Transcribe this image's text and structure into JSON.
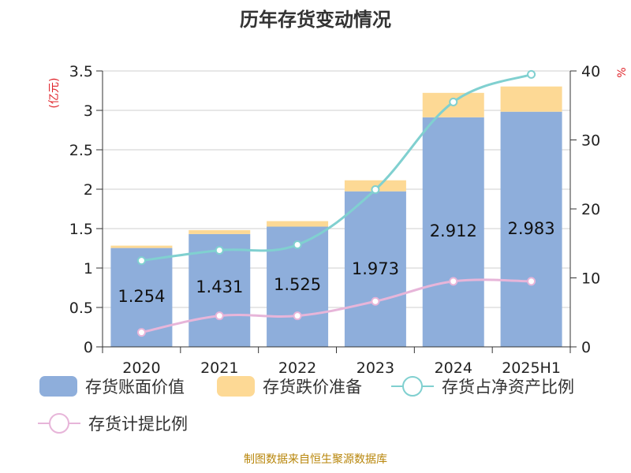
{
  "chart_data": {
    "type": "bar",
    "title": "历年存货变动情况",
    "categories": [
      "2020",
      "2021",
      "2022",
      "2023",
      "2024",
      "2025H1"
    ],
    "left_axis": {
      "unit_label": "(亿元)",
      "ylim": [
        0,
        3.5
      ],
      "ticks": [
        "0",
        "0.5",
        "1",
        "1.5",
        "2",
        "2.5",
        "3",
        "3.5"
      ]
    },
    "right_axis": {
      "unit_label": "%",
      "ylim": [
        0,
        40
      ],
      "ticks": [
        "0",
        "10",
        "20",
        "30",
        "40"
      ]
    },
    "bar_series": [
      {
        "name": "存货账面价值",
        "color": "#8eaedb",
        "values": [
          1.254,
          1.431,
          1.525,
          1.973,
          2.912,
          2.983
        ],
        "labels": [
          "1.254",
          "1.431",
          "1.525",
          "1.973",
          "2.912",
          "2.983"
        ]
      },
      {
        "name": "存货跌价准备",
        "color": "#fdd995",
        "values": [
          0.03,
          0.05,
          0.07,
          0.14,
          0.31,
          0.32
        ]
      }
    ],
    "line_series": [
      {
        "name": "存货占净资产比例",
        "color": "#80d0d0",
        "values": [
          12.5,
          14.0,
          14.8,
          22.8,
          35.5,
          39.5
        ]
      },
      {
        "name": "存货计提比例",
        "color": "#e7b5d9",
        "values": [
          2.1,
          4.5,
          4.5,
          6.6,
          9.5,
          9.5
        ]
      }
    ],
    "grid": true,
    "legend_position": "bottom"
  },
  "footer": {
    "source": "制图数据来自恒生聚源数据库"
  }
}
